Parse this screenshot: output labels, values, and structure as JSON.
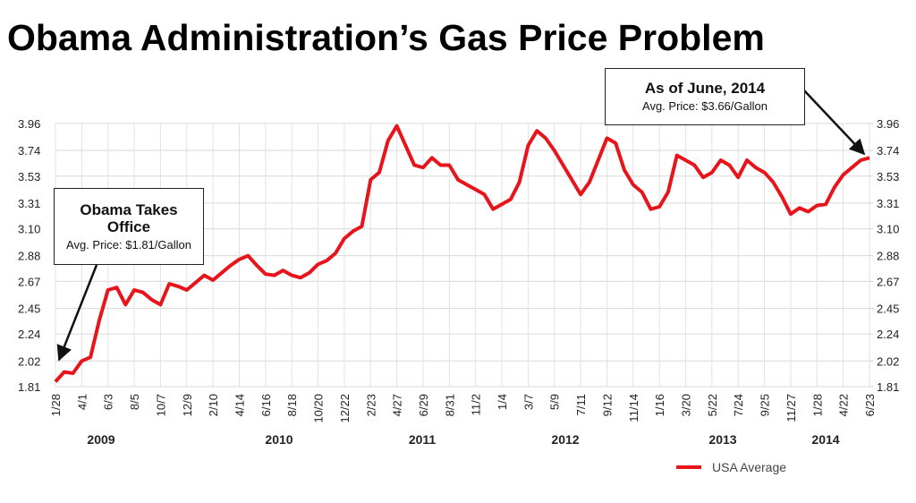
{
  "chart_data": {
    "type": "line",
    "title": "Obama Administration’s Gas Price Problem",
    "categories": [
      "1/28",
      null,
      null,
      "4/1",
      null,
      null,
      "6/3",
      null,
      null,
      "8/5",
      null,
      null,
      "10/7",
      null,
      null,
      "12/9",
      null,
      null,
      "2/10",
      null,
      null,
      "4/14",
      null,
      null,
      "6/16",
      null,
      null,
      "8/18",
      null,
      null,
      "10/20",
      null,
      null,
      "12/22",
      null,
      null,
      "2/23",
      null,
      null,
      "4/27",
      null,
      null,
      "6/29",
      null,
      null,
      "8/31",
      null,
      null,
      "11/2",
      null,
      null,
      "1/4",
      null,
      null,
      "3/7",
      null,
      null,
      "5/9",
      null,
      null,
      "7/11",
      null,
      null,
      "9/12",
      null,
      null,
      "11/14",
      null,
      null,
      "1/16",
      null,
      null,
      "3/20",
      null,
      null,
      "5/22",
      null,
      null,
      "7/24",
      null,
      null,
      "9/25",
      null,
      null,
      "11/27",
      null,
      null,
      "1/28",
      null,
      null,
      "4/22",
      null,
      null,
      "6/23"
    ],
    "series": [
      {
        "name": "USA Average",
        "color": "#e8141b",
        "values": [
          1.85,
          1.93,
          1.92,
          2.02,
          2.05,
          2.35,
          2.6,
          2.62,
          2.48,
          2.6,
          2.58,
          2.52,
          2.48,
          2.65,
          2.63,
          2.6,
          2.66,
          2.72,
          2.68,
          2.74,
          2.8,
          2.85,
          2.88,
          2.8,
          2.73,
          2.72,
          2.76,
          2.72,
          2.7,
          2.74,
          2.81,
          2.84,
          2.9,
          3.02,
          3.08,
          3.12,
          3.5,
          3.56,
          3.82,
          3.94,
          3.78,
          3.62,
          3.6,
          3.68,
          3.62,
          3.62,
          3.5,
          3.46,
          3.42,
          3.38,
          3.26,
          3.3,
          3.34,
          3.48,
          3.78,
          3.9,
          3.84,
          3.74,
          3.62,
          3.5,
          3.38,
          3.48,
          3.66,
          3.84,
          3.8,
          3.58,
          3.46,
          3.4,
          3.26,
          3.28,
          3.4,
          3.7,
          3.66,
          3.62,
          3.52,
          3.56,
          3.66,
          3.62,
          3.52,
          3.66,
          3.6,
          3.56,
          3.48,
          3.36,
          3.22,
          3.27,
          3.24,
          3.29,
          3.3,
          3.44,
          3.54,
          3.6,
          3.66,
          3.68
        ]
      }
    ],
    "years": [
      "2009",
      "2010",
      "2011",
      "2012",
      "2013",
      "2014"
    ],
    "ylim": [
      1.81,
      3.96
    ],
    "yticks": [
      1.81,
      2.02,
      2.24,
      2.45,
      2.67,
      2.88,
      {
        "value": 3.1,
        "label": "3.10"
      },
      3.31,
      3.53,
      3.74,
      3.96
    ],
    "y2lim": [
      1.81,
      3.96
    ],
    "y2ticks": [
      1.81,
      2.02,
      2.24,
      2.45,
      2.67,
      2.88,
      {
        "value": 3.1,
        "label": "3.10"
      },
      3.31,
      3.53,
      3.74,
      3.96
    ],
    "grid": true,
    "annotations": [
      {
        "title": "Obama Takes Office",
        "text": "Avg. Price: $1.81/Gallon"
      },
      {
        "title": "As of June, 2014",
        "text": "Avg. Price: $3.66/Gallon"
      }
    ]
  }
}
